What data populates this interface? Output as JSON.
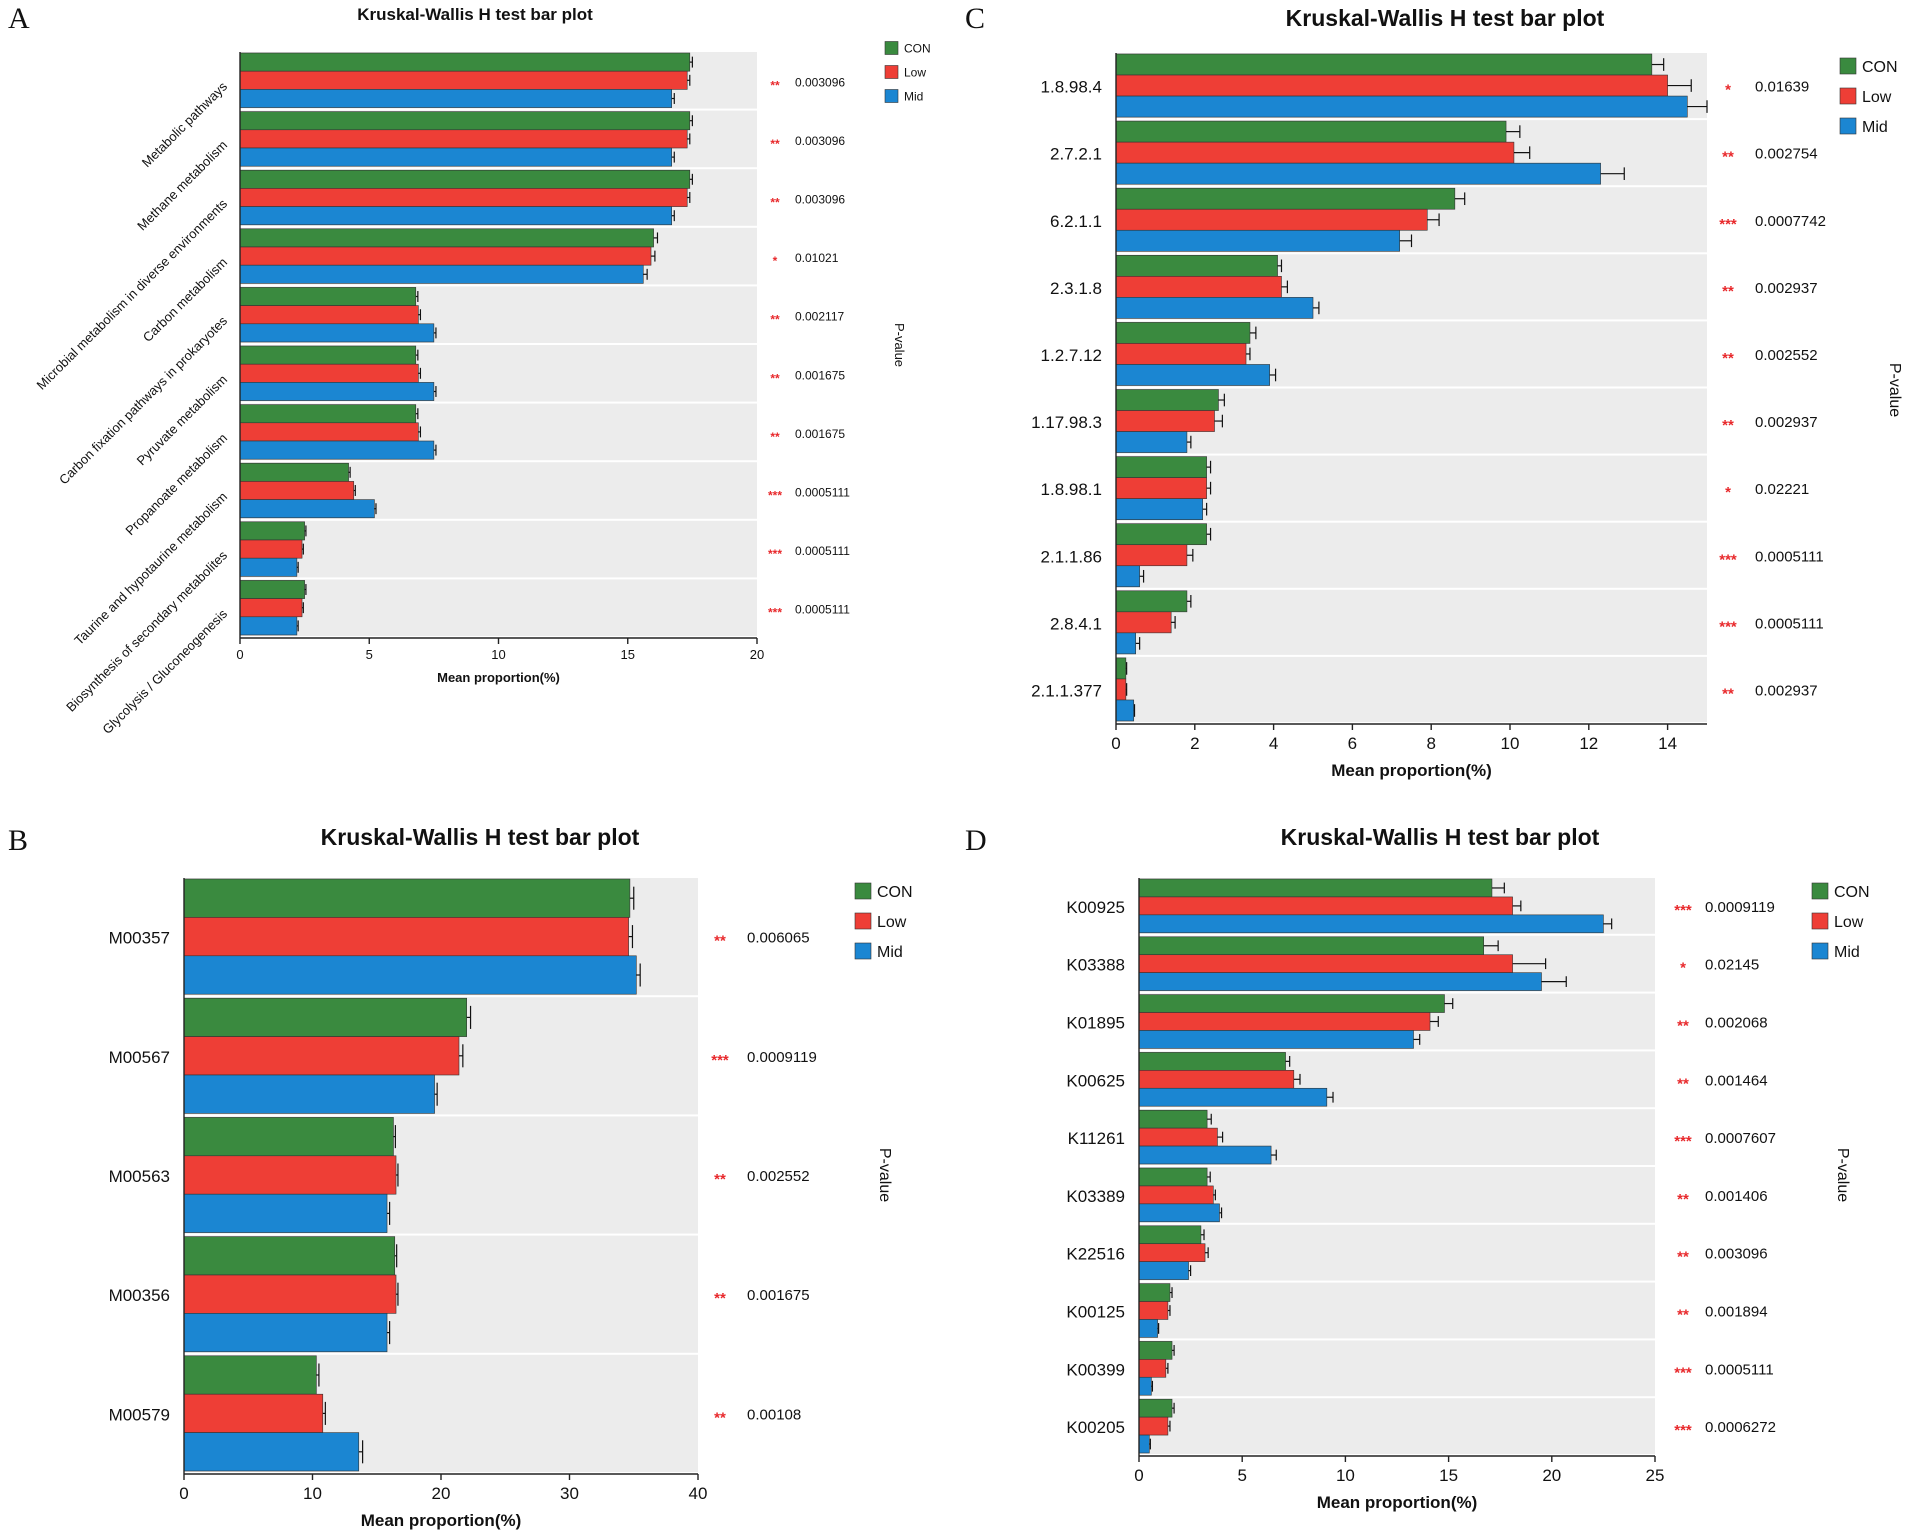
{
  "colors": {
    "CON": "#3a8a3f",
    "Low": "#ee3e36",
    "Mid": "#1b86d2",
    "band": "#ececec",
    "sig": "#e8282b"
  },
  "chart_data": [
    {
      "panel": "A",
      "type": "bar",
      "orientation": "horizontal",
      "title": "Kruskal-Wallis H test bar plot",
      "xlabel": "Mean proportion(%)",
      "right_label": "P-value",
      "xlim": [
        0,
        20
      ],
      "xticks": [
        "0",
        "5",
        "10",
        "15",
        "20"
      ],
      "legend": [
        "CON",
        "Low",
        "Mid"
      ],
      "categories": [
        "Metabolic pathways",
        "Methane metabolism",
        "Microbial metabolism in diverse environments",
        "Carbon metabolism",
        "Carbon fixation pathways in prokaryotes",
        "Pyruvate metabolism",
        "Propanoate metabolism",
        "Taurine and hypotaurine metabolism",
        "Biosynthesis of secondary metabolites",
        "Glycolysis / Gluconeogenesis"
      ],
      "series": [
        {
          "name": "CON",
          "values": [
            17.4,
            17.4,
            17.4,
            16.0,
            6.8,
            6.8,
            6.8,
            4.2,
            2.5,
            2.5
          ],
          "errors": [
            0.1,
            0.1,
            0.1,
            0.15,
            0.08,
            0.08,
            0.08,
            0.06,
            0.05,
            0.05
          ]
        },
        {
          "name": "Low",
          "values": [
            17.3,
            17.3,
            17.3,
            15.9,
            6.9,
            6.9,
            6.9,
            4.4,
            2.4,
            2.4
          ],
          "errors": [
            0.1,
            0.1,
            0.1,
            0.15,
            0.08,
            0.08,
            0.08,
            0.06,
            0.05,
            0.05
          ]
        },
        {
          "name": "Mid",
          "values": [
            16.7,
            16.7,
            16.7,
            15.6,
            7.5,
            7.5,
            7.5,
            5.2,
            2.2,
            2.2
          ],
          "errors": [
            0.1,
            0.1,
            0.1,
            0.15,
            0.08,
            0.08,
            0.08,
            0.06,
            0.05,
            0.05
          ]
        }
      ],
      "p_values": [
        "0.003096",
        "0.003096",
        "0.003096",
        "0.01021",
        "0.002117",
        "0.001675",
        "0.001675",
        "0.0005111",
        "0.0005111",
        "0.0005111"
      ],
      "significance": [
        "**",
        "**",
        "**",
        "*",
        "**",
        "**",
        "**",
        "***",
        "***",
        "***"
      ]
    },
    {
      "panel": "B",
      "type": "bar",
      "orientation": "horizontal",
      "title": "Kruskal-Wallis H test bar plot",
      "xlabel": "Mean proportion(%)",
      "right_label": "P-value",
      "xlim": [
        0,
        40
      ],
      "xticks": [
        "0",
        "10",
        "20",
        "30",
        "40"
      ],
      "legend": [
        "CON",
        "Low",
        "Mid"
      ],
      "categories": [
        "M00357",
        "M00567",
        "M00563",
        "M00356",
        "M00579"
      ],
      "series": [
        {
          "name": "CON",
          "values": [
            34.7,
            22.0,
            16.3,
            16.4,
            10.3
          ],
          "errors": [
            0.3,
            0.3,
            0.15,
            0.15,
            0.2
          ]
        },
        {
          "name": "Low",
          "values": [
            34.6,
            21.4,
            16.5,
            16.5,
            10.8
          ],
          "errors": [
            0.3,
            0.3,
            0.15,
            0.15,
            0.2
          ]
        },
        {
          "name": "Mid",
          "values": [
            35.2,
            19.5,
            15.8,
            15.8,
            13.6
          ],
          "errors": [
            0.3,
            0.2,
            0.2,
            0.2,
            0.3
          ]
        }
      ],
      "p_values": [
        "0.006065",
        "0.0009119",
        "0.002552",
        "0.001675",
        "0.00108"
      ],
      "significance": [
        "**",
        "***",
        "**",
        "**",
        "**"
      ]
    },
    {
      "panel": "C",
      "type": "bar",
      "orientation": "horizontal",
      "title": "Kruskal-Wallis H test bar plot",
      "xlabel": "Mean proportion(%)",
      "right_label": "P-value",
      "xlim": [
        0,
        15
      ],
      "xticks": [
        "0",
        "2",
        "4",
        "6",
        "8",
        "10",
        "12",
        "14"
      ],
      "legend": [
        "CON",
        "Low",
        "Mid"
      ],
      "categories": [
        "1.8.98.4",
        "2.7.2.1",
        "6.2.1.1",
        "2.3.1.8",
        "1.2.7.12",
        "1.17.98.3",
        "1.8.98.1",
        "2.1.1.86",
        "2.8.4.1",
        "2.1.1.377"
      ],
      "series": [
        {
          "name": "CON",
          "values": [
            13.6,
            9.9,
            8.6,
            4.1,
            3.4,
            2.6,
            2.3,
            2.3,
            1.8,
            0.25
          ],
          "errors": [
            0.3,
            0.35,
            0.25,
            0.1,
            0.15,
            0.15,
            0.1,
            0.1,
            0.1,
            0.02
          ]
        },
        {
          "name": "Low",
          "values": [
            14.0,
            10.1,
            7.9,
            4.2,
            3.3,
            2.5,
            2.3,
            1.8,
            1.4,
            0.25
          ],
          "errors": [
            0.6,
            0.4,
            0.3,
            0.15,
            0.1,
            0.2,
            0.1,
            0.15,
            0.1,
            0.02
          ]
        },
        {
          "name": "Mid",
          "values": [
            14.5,
            12.3,
            7.2,
            5.0,
            3.9,
            1.8,
            2.2,
            0.6,
            0.5,
            0.45
          ],
          "errors": [
            0.5,
            0.6,
            0.3,
            0.15,
            0.15,
            0.1,
            0.1,
            0.1,
            0.1,
            0.02
          ]
        }
      ],
      "p_values": [
        "0.01639",
        "0.002754",
        "0.0007742",
        "0.002937",
        "0.002552",
        "0.002937",
        "0.02221",
        "0.0005111",
        "0.0005111",
        "0.002937"
      ],
      "significance": [
        "*",
        "**",
        "***",
        "**",
        "**",
        "**",
        "*",
        "***",
        "***",
        "**"
      ]
    },
    {
      "panel": "D",
      "type": "bar",
      "orientation": "horizontal",
      "title": "Kruskal-Wallis H test bar plot",
      "xlabel": "Mean proportion(%)",
      "right_label": "P-value",
      "xlim": [
        0,
        25
      ],
      "xticks": [
        "0",
        "5",
        "10",
        "15",
        "20",
        "25"
      ],
      "legend": [
        "CON",
        "Low",
        "Mid"
      ],
      "categories": [
        "K00925",
        "K03388",
        "K01895",
        "K00625",
        "K11261",
        "K03389",
        "K22516",
        "K00125",
        "K00399",
        "K00205"
      ],
      "series": [
        {
          "name": "CON",
          "values": [
            17.1,
            16.7,
            14.8,
            7.1,
            3.3,
            3.3,
            3.0,
            1.5,
            1.6,
            1.6
          ],
          "errors": [
            0.6,
            0.7,
            0.4,
            0.2,
            0.2,
            0.15,
            0.15,
            0.1,
            0.1,
            0.1
          ]
        },
        {
          "name": "Low",
          "values": [
            18.1,
            18.1,
            14.1,
            7.5,
            3.8,
            3.6,
            3.2,
            1.4,
            1.3,
            1.4
          ],
          "errors": [
            0.4,
            1.6,
            0.4,
            0.3,
            0.25,
            0.1,
            0.15,
            0.1,
            0.1,
            0.1
          ]
        },
        {
          "name": "Mid",
          "values": [
            22.5,
            19.5,
            13.3,
            9.1,
            6.4,
            3.9,
            2.4,
            0.9,
            0.6,
            0.5
          ],
          "errors": [
            0.4,
            1.2,
            0.3,
            0.3,
            0.25,
            0.1,
            0.1,
            0.05,
            0.05,
            0.05
          ]
        }
      ],
      "p_values": [
        "0.0009119",
        "0.02145",
        "0.002068",
        "0.001464",
        "0.0007607",
        "0.001406",
        "0.003096",
        "0.001894",
        "0.0005111",
        "0.0006272"
      ],
      "significance": [
        "***",
        "*",
        "**",
        "**",
        "***",
        "**",
        "**",
        "**",
        "***",
        "***"
      ]
    }
  ]
}
